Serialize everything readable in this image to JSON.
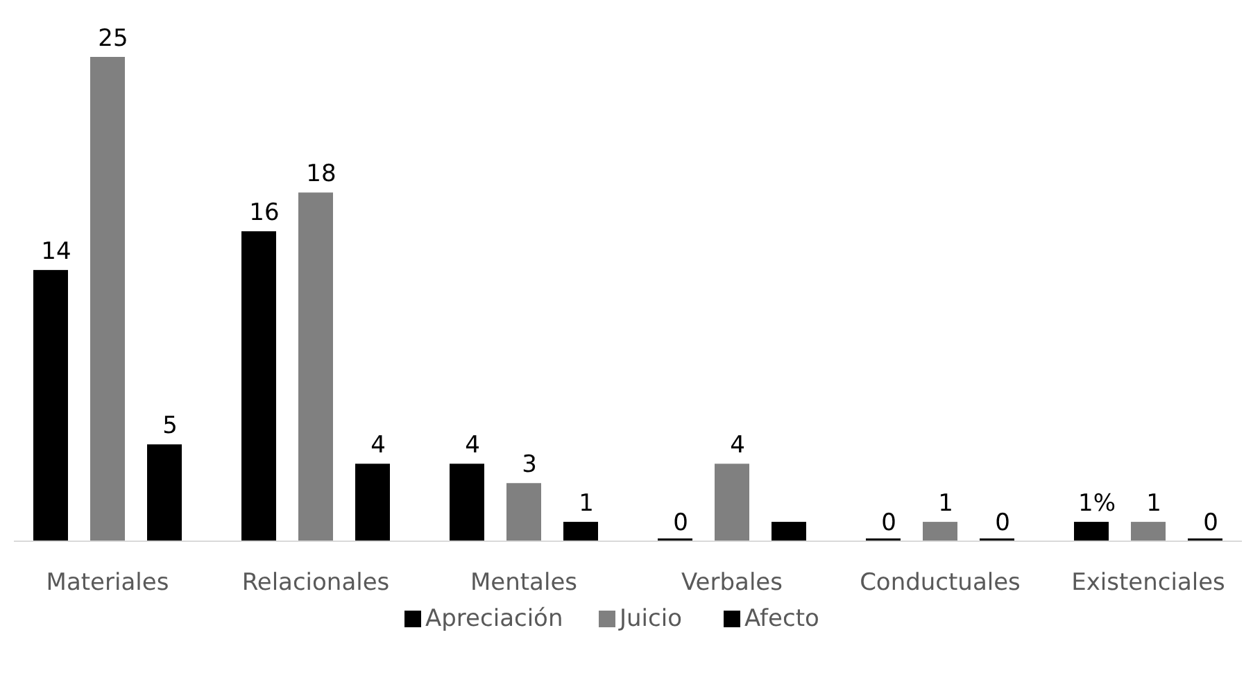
{
  "chart_data": {
    "type": "bar",
    "categories": [
      "Materiales",
      "Relacionales",
      "Mentales",
      "Verbales",
      "Conductuales",
      "Existenciales"
    ],
    "series": [
      {
        "name": "Apreciación",
        "color": "#000000",
        "values": [
          14,
          16,
          4,
          0,
          0,
          1
        ],
        "value_labels": [
          "14",
          "16",
          "4",
          "0",
          "0",
          "1%"
        ]
      },
      {
        "name": "Juicio",
        "color": "#808080",
        "values": [
          25,
          18,
          3,
          4,
          1,
          1
        ],
        "value_labels": [
          "25",
          "18",
          "3",
          "4",
          "1",
          "1"
        ]
      },
      {
        "name": "Afecto",
        "color": "#000000",
        "values": [
          5,
          4,
          1,
          1,
          0,
          0
        ],
        "value_labels": [
          "5",
          "4",
          "1",
          null,
          "0",
          "0"
        ]
      }
    ],
    "legend": "bottom"
  }
}
